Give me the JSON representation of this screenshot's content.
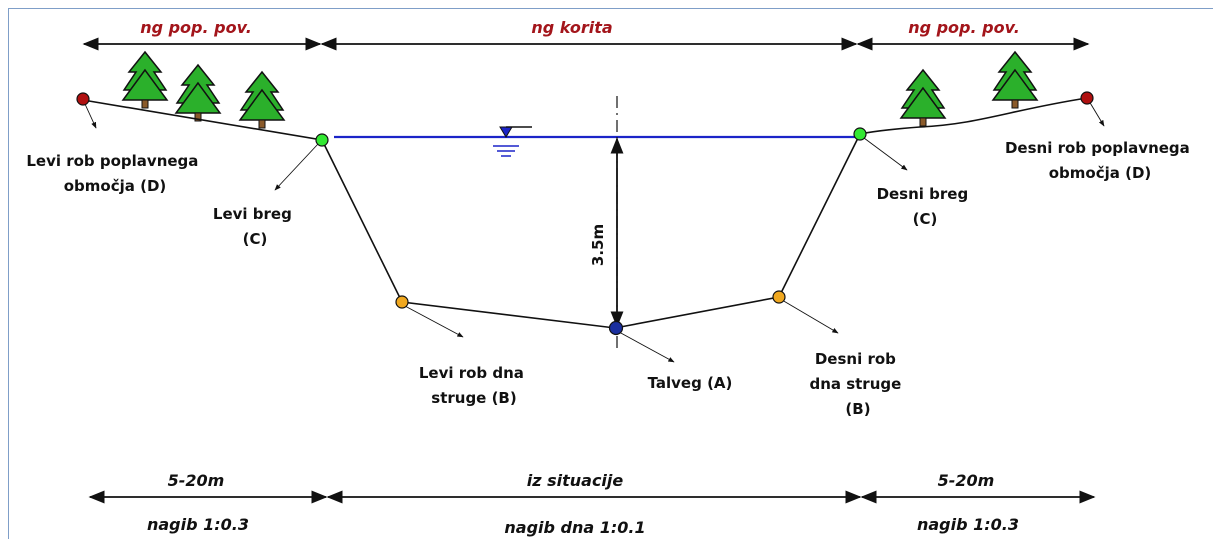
{
  "top_dimensions": {
    "left": "ng pop. pov.",
    "middle": "ng korita",
    "right": "ng pop. pov."
  },
  "bottom_dimensions": {
    "left_width": "5-20m",
    "middle_width": "iz situacije",
    "right_width": "5-20m",
    "left_slope": "nagib 1:0.3",
    "middle_slope": "nagib dna 1:0.1",
    "right_slope": "nagib 1:0.3"
  },
  "depth_label": "3.5m",
  "points": {
    "left_floodplain": [
      "Levi rob poplavnega",
      "območja  (D)"
    ],
    "left_bank": [
      "Levi breg",
      "(C)"
    ],
    "left_bed": [
      "Levi rob  dna",
      "struge  (B)"
    ],
    "thalweg": [
      "Talveg  (A)"
    ],
    "right_bed": [
      "Desni rob",
      "dna struge",
      "(B)"
    ],
    "right_bank": [
      "Desni breg",
      "(C)"
    ],
    "right_floodplain": [
      "Desni rob poplavnega",
      "območja  (D)"
    ]
  },
  "colors": {
    "floodplain_point": "#b01010",
    "bank_point": "#33e833",
    "bed_point": "#f0a820",
    "thalweg_point": "#1a2f9e",
    "water_line": "#1b24c8",
    "top_label": "#a3151b",
    "tree": "#2bb02b"
  },
  "icons": [
    "tree-icon",
    "water-level-icon"
  ]
}
